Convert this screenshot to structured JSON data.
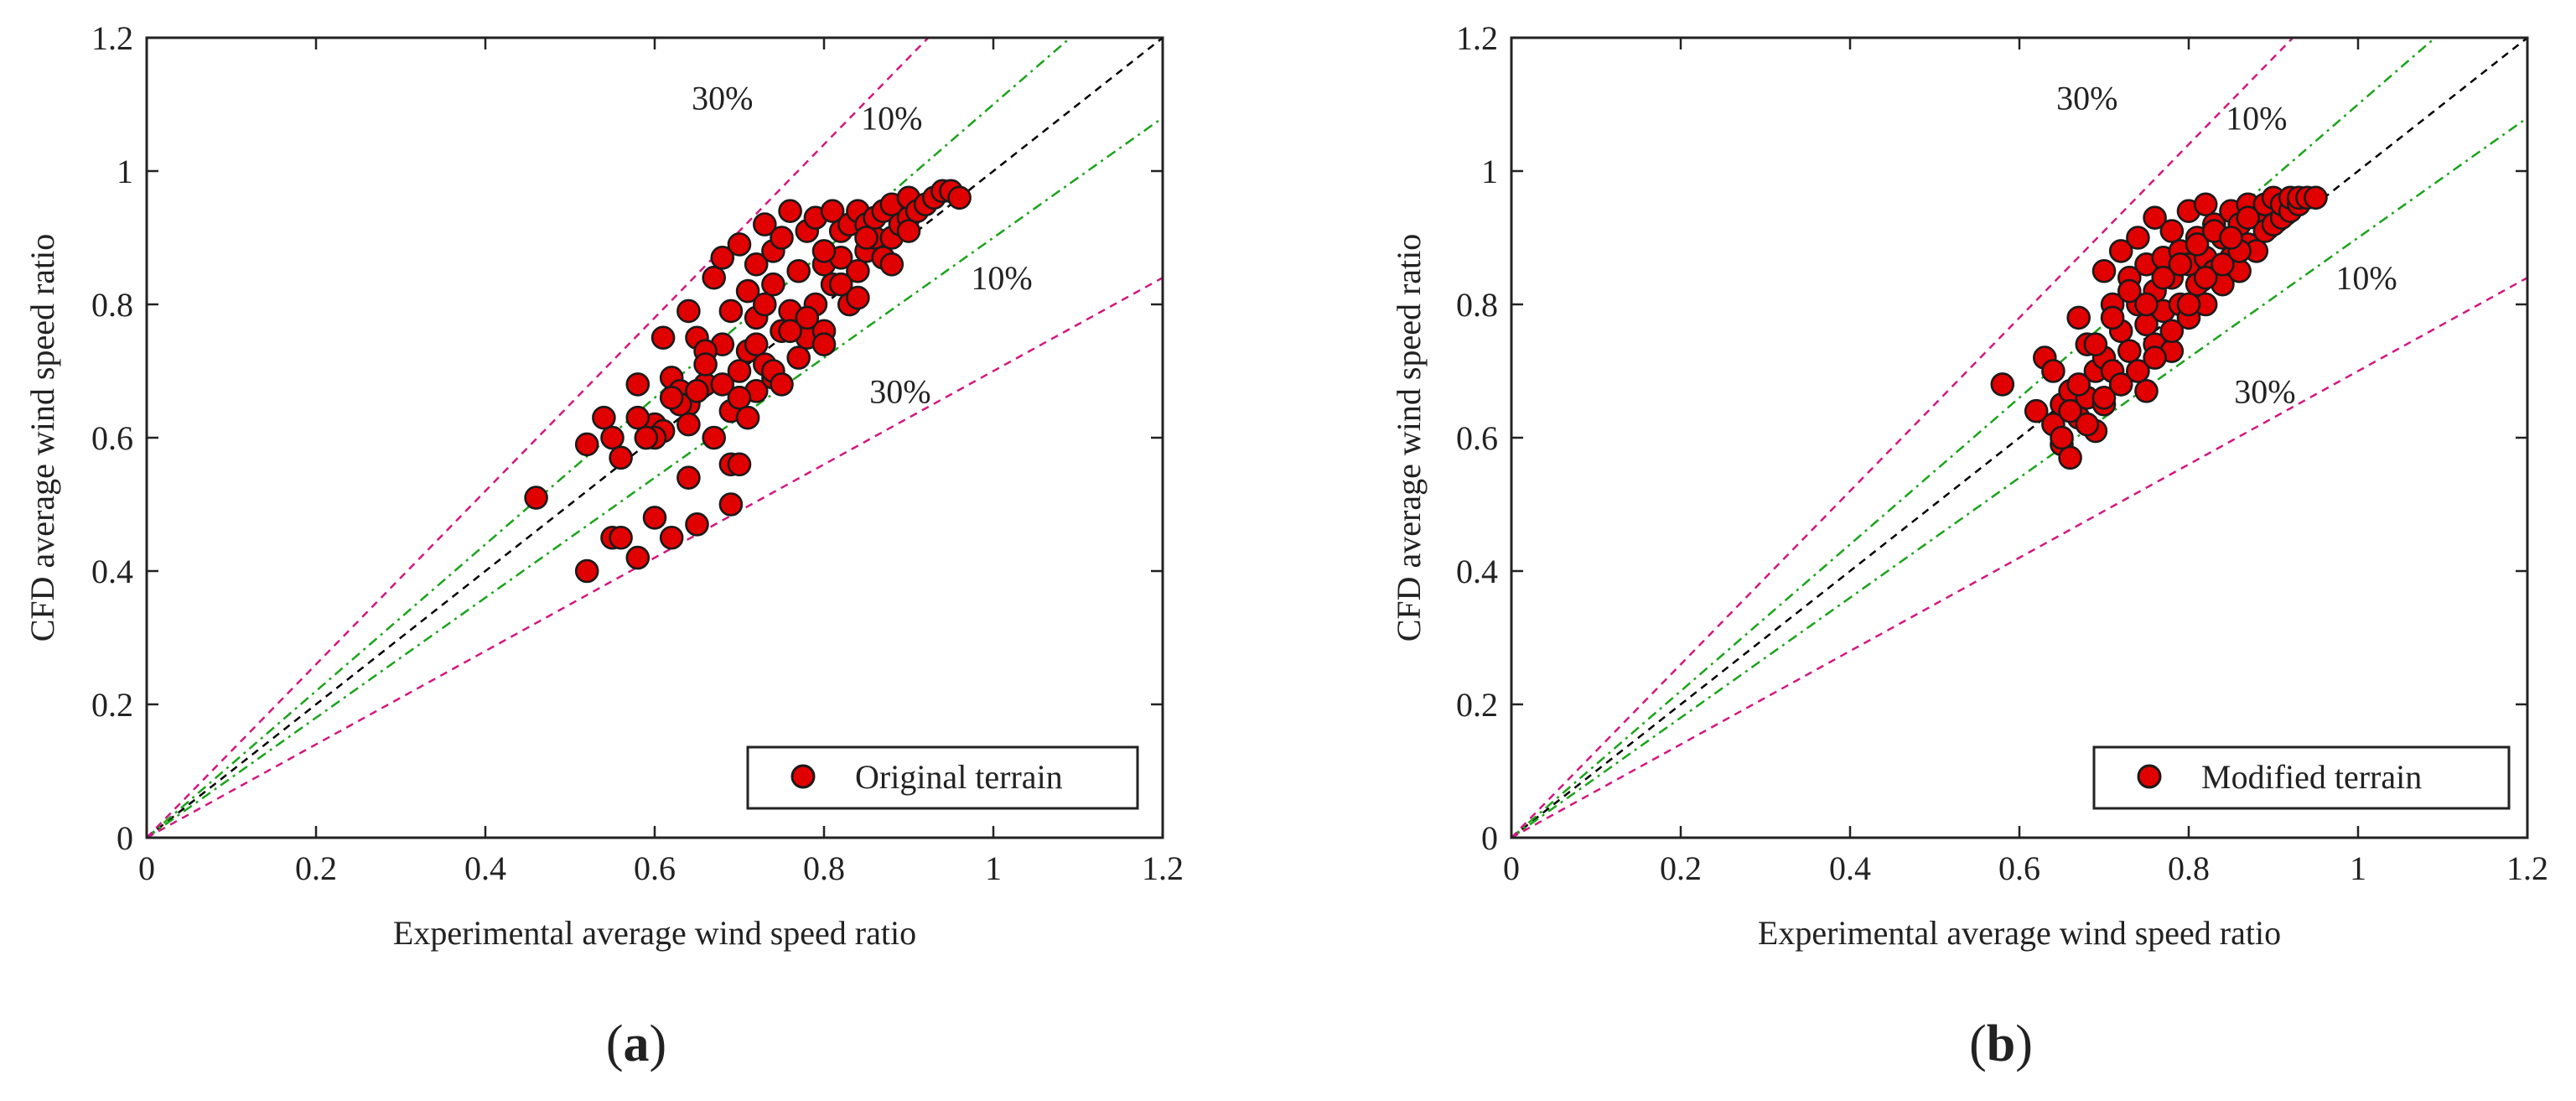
{
  "colors": {
    "marker_fill": "#e00000",
    "marker_edge": "#1a1a1a",
    "ref_line": "#000000",
    "line_10pct": "#1aa31a",
    "line_30pct": "#d2177f",
    "axes": "#222222"
  },
  "chart_data": [
    {
      "type": "scatter",
      "panel_label": "a",
      "xlabel": "Experimental average wind speed ratio",
      "ylabel": "CFD average wind speed ratio",
      "xlim": [
        0,
        1.2
      ],
      "ylim": [
        0,
        1.2
      ],
      "xticks": [
        "0",
        "0.2",
        "0.4",
        "0.6",
        "0.8",
        "1",
        "1.2"
      ],
      "yticks": [
        "0",
        "0.2",
        "0.4",
        "0.6",
        "0.8",
        "1",
        "1.2"
      ],
      "grid": false,
      "legend": {
        "placement": "bottom-right",
        "label": "Original terrain"
      },
      "reference_lines": [
        {
          "name": "1:1",
          "slope": 1.0,
          "style": "dashed"
        },
        {
          "name": "+10%",
          "slope": 1.1,
          "style": "dash-dot",
          "label": "10%"
        },
        {
          "name": "-10%",
          "slope": 0.9,
          "style": "dash-dot",
          "label": "10%"
        },
        {
          "name": "+30%",
          "slope": 1.3,
          "style": "dashed",
          "label": "30%"
        },
        {
          "name": "-30%",
          "slope": 0.7,
          "style": "dashed",
          "label": "30%"
        }
      ],
      "line_labels": [
        {
          "text": "30%",
          "x": 0.68,
          "y": 1.11
        },
        {
          "text": "10%",
          "x": 0.88,
          "y": 1.08
        },
        {
          "text": "10%",
          "x": 1.01,
          "y": 0.84
        },
        {
          "text": "30%",
          "x": 0.89,
          "y": 0.67
        }
      ],
      "x": [
        0.46,
        0.52,
        0.54,
        0.55,
        0.56,
        0.58,
        0.59,
        0.6,
        0.61,
        0.61,
        0.62,
        0.63,
        0.64,
        0.64,
        0.65,
        0.66,
        0.67,
        0.67,
        0.68,
        0.68,
        0.69,
        0.69,
        0.7,
        0.7,
        0.7,
        0.71,
        0.71,
        0.72,
        0.72,
        0.72,
        0.73,
        0.73,
        0.73,
        0.74,
        0.74,
        0.74,
        0.75,
        0.75,
        0.76,
        0.76,
        0.77,
        0.77,
        0.78,
        0.78,
        0.79,
        0.79,
        0.8,
        0.8,
        0.81,
        0.81,
        0.82,
        0.82,
        0.83,
        0.83,
        0.84,
        0.84,
        0.85,
        0.85,
        0.86,
        0.86,
        0.87,
        0.87,
        0.88,
        0.88,
        0.89,
        0.9,
        0.9,
        0.91,
        0.92,
        0.93,
        0.94,
        0.95,
        0.96,
        0.58,
        0.6,
        0.63,
        0.65,
        0.66,
        0.68,
        0.7,
        0.72,
        0.74,
        0.75,
        0.78,
        0.8,
        0.82,
        0.84,
        0.69,
        0.71,
        0.76,
        0.8,
        0.85,
        0.88,
        0.9,
        0.62,
        0.64,
        0.66,
        0.52,
        0.55,
        0.58,
        0.6,
        0.62,
        0.64,
        0.65,
        0.69,
        0.7,
        0.56,
        0.59
      ],
      "y": [
        0.51,
        0.59,
        0.63,
        0.6,
        0.57,
        0.68,
        0.6,
        0.62,
        0.75,
        0.61,
        0.69,
        0.67,
        0.79,
        0.65,
        0.75,
        0.68,
        0.84,
        0.6,
        0.74,
        0.87,
        0.64,
        0.79,
        0.7,
        0.89,
        0.66,
        0.73,
        0.82,
        0.67,
        0.78,
        0.86,
        0.71,
        0.8,
        0.92,
        0.69,
        0.83,
        0.88,
        0.76,
        0.9,
        0.79,
        0.94,
        0.72,
        0.85,
        0.75,
        0.91,
        0.8,
        0.93,
        0.76,
        0.86,
        0.83,
        0.94,
        0.87,
        0.91,
        0.8,
        0.92,
        0.85,
        0.94,
        0.88,
        0.92,
        0.9,
        0.93,
        0.87,
        0.94,
        0.9,
        0.95,
        0.92,
        0.93,
        0.96,
        0.94,
        0.95,
        0.96,
        0.97,
        0.97,
        0.96,
        0.63,
        0.6,
        0.65,
        0.67,
        0.73,
        0.68,
        0.66,
        0.74,
        0.7,
        0.68,
        0.78,
        0.74,
        0.83,
        0.81,
        0.56,
        0.63,
        0.76,
        0.88,
        0.9,
        0.86,
        0.91,
        0.66,
        0.62,
        0.71,
        0.4,
        0.45,
        0.42,
        0.48,
        0.45,
        0.54,
        0.47,
        0.5,
        0.56,
        0.45,
        0.6
      ]
    },
    {
      "type": "scatter",
      "panel_label": "b",
      "xlabel": "Experimental average wind speed ratio",
      "ylabel": "CFD average wind speed ratio",
      "xlim": [
        0,
        1.2
      ],
      "ylim": [
        0,
        1.2
      ],
      "xticks": [
        "0",
        "0.2",
        "0.4",
        "0.6",
        "0.8",
        "1",
        "1.2"
      ],
      "yticks": [
        "0",
        "0.2",
        "0.4",
        "0.6",
        "0.8",
        "1",
        "1.2"
      ],
      "grid": false,
      "legend": {
        "placement": "bottom-right",
        "label": "Modified terrain"
      },
      "reference_lines": [
        {
          "name": "1:1",
          "slope": 1.0,
          "style": "dashed"
        },
        {
          "name": "+10%",
          "slope": 1.1,
          "style": "dash-dot",
          "label": "10%"
        },
        {
          "name": "-10%",
          "slope": 0.9,
          "style": "dash-dot",
          "label": "10%"
        },
        {
          "name": "+30%",
          "slope": 1.3,
          "style": "dashed",
          "label": "30%"
        },
        {
          "name": "-30%",
          "slope": 0.7,
          "style": "dashed",
          "label": "30%"
        }
      ],
      "line_labels": [
        {
          "text": "30%",
          "x": 0.68,
          "y": 1.11
        },
        {
          "text": "10%",
          "x": 0.88,
          "y": 1.08
        },
        {
          "text": "10%",
          "x": 1.01,
          "y": 0.84
        },
        {
          "text": "30%",
          "x": 0.89,
          "y": 0.67
        }
      ],
      "x": [
        0.58,
        0.62,
        0.63,
        0.64,
        0.64,
        0.65,
        0.65,
        0.66,
        0.66,
        0.67,
        0.67,
        0.68,
        0.68,
        0.69,
        0.69,
        0.7,
        0.7,
        0.7,
        0.71,
        0.71,
        0.72,
        0.72,
        0.72,
        0.73,
        0.73,
        0.74,
        0.74,
        0.74,
        0.75,
        0.75,
        0.75,
        0.76,
        0.76,
        0.76,
        0.77,
        0.77,
        0.78,
        0.78,
        0.78,
        0.79,
        0.79,
        0.8,
        0.8,
        0.8,
        0.81,
        0.81,
        0.82,
        0.82,
        0.82,
        0.83,
        0.83,
        0.84,
        0.84,
        0.85,
        0.85,
        0.86,
        0.86,
        0.87,
        0.87,
        0.88,
        0.88,
        0.89,
        0.89,
        0.9,
        0.9,
        0.91,
        0.91,
        0.92,
        0.92,
        0.93,
        0.93,
        0.94,
        0.95,
        0.66,
        0.68,
        0.7,
        0.72,
        0.74,
        0.76,
        0.78,
        0.8,
        0.82,
        0.84,
        0.86,
        0.65,
        0.67,
        0.69,
        0.71,
        0.73,
        0.75,
        0.77,
        0.79,
        0.81,
        0.83,
        0.85,
        0.87
      ],
      "y": [
        0.68,
        0.64,
        0.72,
        0.62,
        0.7,
        0.59,
        0.65,
        0.57,
        0.67,
        0.63,
        0.78,
        0.66,
        0.74,
        0.61,
        0.7,
        0.65,
        0.72,
        0.85,
        0.7,
        0.8,
        0.68,
        0.76,
        0.88,
        0.73,
        0.84,
        0.7,
        0.8,
        0.9,
        0.67,
        0.77,
        0.86,
        0.74,
        0.82,
        0.93,
        0.79,
        0.87,
        0.73,
        0.84,
        0.91,
        0.8,
        0.88,
        0.78,
        0.86,
        0.94,
        0.83,
        0.9,
        0.8,
        0.87,
        0.95,
        0.85,
        0.92,
        0.83,
        0.9,
        0.87,
        0.94,
        0.85,
        0.92,
        0.89,
        0.95,
        0.88,
        0.93,
        0.91,
        0.95,
        0.92,
        0.96,
        0.93,
        0.95,
        0.94,
        0.96,
        0.95,
        0.96,
        0.96,
        0.96,
        0.64,
        0.62,
        0.66,
        0.68,
        0.7,
        0.72,
        0.76,
        0.8,
        0.84,
        0.86,
        0.88,
        0.6,
        0.68,
        0.74,
        0.78,
        0.82,
        0.8,
        0.84,
        0.86,
        0.89,
        0.91,
        0.9,
        0.93
      ]
    }
  ]
}
